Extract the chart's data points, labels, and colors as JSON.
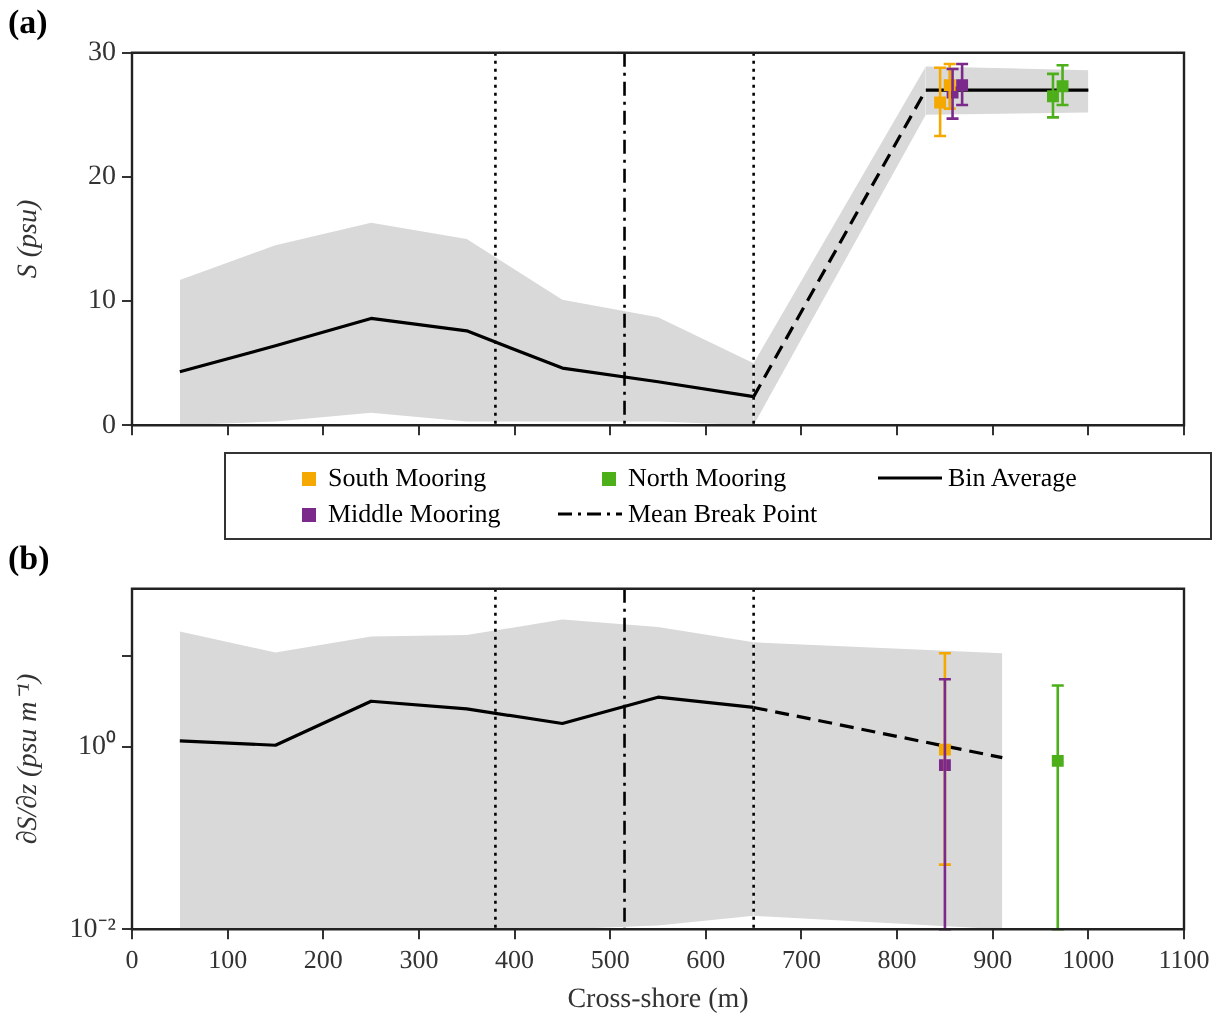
{
  "chart_data": [
    {
      "type": "line",
      "title": "(a)",
      "ylabel": "S (psu)",
      "xlim": [
        0,
        1100
      ],
      "xticks": [
        0,
        100,
        200,
        300,
        400,
        500,
        600,
        700,
        800,
        900,
        1000,
        1100
      ],
      "ylim": [
        0,
        30
      ],
      "yticks": [
        0,
        10,
        20,
        30
      ],
      "tick_labels": "y",
      "grid": false,
      "legend": "bottom",
      "series": [
        {
          "name": "South Mooring",
          "type": "scatter",
          "marker": "square",
          "color": "#f5a800",
          "x": [
            845,
            855
          ],
          "values": [
            26,
            27.4
          ],
          "errors": [
            [
              23.3,
              28.8
            ],
            [
              25.5,
              29.1
            ]
          ]
        },
        {
          "name": "North Mooring",
          "type": "scatter",
          "marker": "square",
          "color": "#4daf1a",
          "x": [
            963,
            973
          ],
          "values": [
            26.5,
            27.3
          ],
          "errors": [
            [
              24.8,
              28.3
            ],
            [
              25.8,
              29
            ]
          ]
        },
        {
          "name": "Bin Average",
          "color": "#000000",
          "line_style": "solid",
          "x": [
            50,
            150,
            250,
            350,
            450,
            550,
            650
          ],
          "values": [
            4.3,
            6.4,
            8.6,
            7.6,
            4.6,
            3.5,
            2.3
          ],
          "lower": [
            0,
            0.3,
            1,
            0.3,
            0.3,
            0.3,
            0
          ],
          "upper": [
            11.7,
            14.5,
            16.3,
            15,
            10.1,
            8.7,
            5
          ]
        },
        {
          "name": "Middle Mooring",
          "type": "scatter",
          "marker": "square",
          "color": "#7b2a8c",
          "x": [
            858,
            868
          ],
          "values": [
            26.8,
            27.4
          ],
          "errors": [
            [
              24.7,
              28.7
            ],
            [
              25.8,
              29.1
            ]
          ]
        },
        {
          "color": "#000000",
          "line_style": "dashed",
          "x": [
            650,
            830
          ],
          "values": [
            2.3,
            27
          ],
          "lower": [
            0,
            25
          ],
          "upper": [
            5,
            28.9
          ]
        },
        {
          "color": "#000000",
          "line_style": "solid",
          "x": [
            830,
            1000
          ],
          "values": [
            27,
            27
          ],
          "lower": [
            25,
            25.2
          ],
          "upper": [
            28.9,
            28.6
          ]
        }
      ],
      "ref_lines": [
        {
          "axis": "x",
          "value": 380,
          "line_style": "dotted"
        },
        {
          "axis": "x",
          "value": 515,
          "line_style": "dashdot",
          "label": "Mean Break Point"
        },
        {
          "axis": "x",
          "value": 650,
          "line_style": "dotted"
        }
      ]
    },
    {
      "type": "line",
      "title": "(b)",
      "xlabel": "Cross-shore (m)",
      "ylabel": "∂S/∂z (psu m⁻¹)",
      "log": "y",
      "xlim": [
        0,
        1100
      ],
      "xticks": [
        0,
        100,
        200,
        300,
        400,
        500,
        600,
        700,
        800,
        900,
        1000,
        1100
      ],
      "ylim": [
        0.01,
        54
      ],
      "yticks": [
        {
          "value": 0.01,
          "label": "10⁻²"
        },
        {
          "value": 1,
          "label": "10⁰"
        },
        {
          "value": 10,
          "label": null
        }
      ],
      "grid": false,
      "series": [
        {
          "color": "#000000",
          "line_style": "solid",
          "x": [
            50,
            150,
            250,
            350,
            450,
            550,
            650
          ],
          "values": [
            1.16,
            1.04,
            3.16,
            2.6,
            1.8,
            3.5,
            2.7
          ],
          "lower": [
            0.01,
            0.01,
            0.01,
            0.01,
            0.01,
            0.011,
            0.014
          ],
          "upper": [
            18.4,
            10.8,
            16.2,
            16.8,
            24.8,
            20.6,
            14
          ]
        },
        {
          "color": "#000000",
          "line_style": "dashed",
          "x": [
            650,
            910
          ],
          "values": [
            2.7,
            0.76
          ],
          "lower": [
            0.014,
            0.01
          ],
          "upper": [
            14,
            10.6
          ]
        },
        {
          "type": "scatter",
          "marker": "square",
          "color": "#f5a800",
          "x": [
            850
          ],
          "values": [
            0.93
          ],
          "errors": [
            [
              0.051,
              10.6
            ]
          ]
        },
        {
          "type": "scatter",
          "marker": "square",
          "color": "#7b2a8c",
          "x": [
            850
          ],
          "values": [
            0.63
          ],
          "errors": [
            [
              0.01,
              5.5
            ]
          ]
        },
        {
          "type": "scatter",
          "marker": "square",
          "color": "#4daf1a",
          "x": [
            968
          ],
          "values": [
            0.7
          ],
          "errors": [
            [
              0.01,
              4.7
            ]
          ]
        }
      ],
      "ref_lines": [
        {
          "axis": "x",
          "value": 380,
          "line_style": "dotted"
        },
        {
          "axis": "x",
          "value": 515,
          "line_style": "dashdot"
        },
        {
          "axis": "x",
          "value": 650,
          "line_style": "dotted"
        }
      ]
    }
  ]
}
